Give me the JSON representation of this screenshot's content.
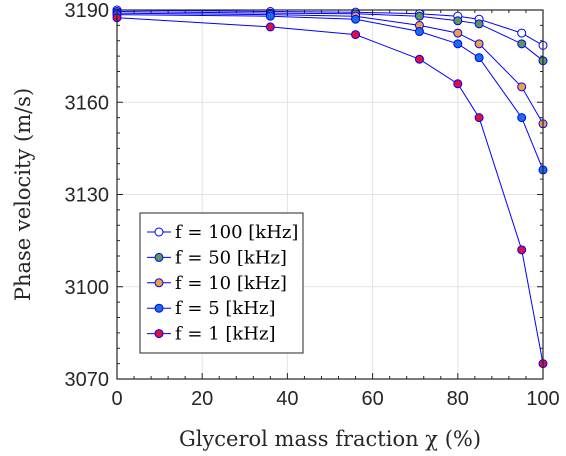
{
  "chart_data": {
    "type": "line",
    "xlabel": "Glycerol mass fraction χ (%)",
    "ylabel": "Phase velocity (m/s)",
    "xlim": [
      0,
      100
    ],
    "ylim": [
      3070,
      3190
    ],
    "x_ticks": [
      0,
      20,
      40,
      60,
      80,
      100
    ],
    "y_ticks": [
      3070,
      3100,
      3130,
      3160,
      3190
    ],
    "x_tick_labels": [
      "0",
      "20",
      "40",
      "60",
      "80",
      "100"
    ],
    "y_tick_labels": [
      "3070",
      "3100",
      "3130",
      "3160",
      "3190"
    ],
    "grid": true,
    "legend_position": "bottom-left",
    "line_color": "#0000ff",
    "series": [
      {
        "name": "f = 100 [kHz]",
        "marker_color": "#ffffff",
        "x": [
          0,
          36,
          56,
          71,
          80,
          85,
          95,
          100
        ],
        "y": [
          3190,
          3189.5,
          3189.3,
          3188.8,
          3188,
          3187,
          3182.5,
          3178.5
        ]
      },
      {
        "name": "f = 50 [kHz]",
        "marker_color": "#5b9a4e",
        "x": [
          0,
          36,
          56,
          71,
          80,
          85,
          95,
          100
        ],
        "y": [
          3189.5,
          3189,
          3188.8,
          3188,
          3186.5,
          3185.5,
          3179,
          3173.5
        ]
      },
      {
        "name": "f = 10 [kHz]",
        "marker_color": "#f0a040",
        "x": [
          0,
          36,
          56,
          71,
          80,
          85,
          95,
          100
        ],
        "y": [
          3189,
          3188.5,
          3188,
          3185,
          3182.5,
          3179,
          3165,
          3153
        ]
      },
      {
        "name": "f = 5 [kHz]",
        "marker_color": "#1a6fe0",
        "x": [
          0,
          36,
          56,
          71,
          80,
          85,
          95,
          100
        ],
        "y": [
          3188.5,
          3188,
          3187,
          3183,
          3179,
          3174.5,
          3155,
          3138
        ]
      },
      {
        "name": "f = 1 [kHz]",
        "marker_color": "#e0103c",
        "x": [
          0,
          36,
          56,
          71,
          80,
          85,
          95,
          100
        ],
        "y": [
          3187.5,
          3184.5,
          3182,
          3174,
          3166,
          3155,
          3112,
          3075
        ]
      }
    ]
  }
}
